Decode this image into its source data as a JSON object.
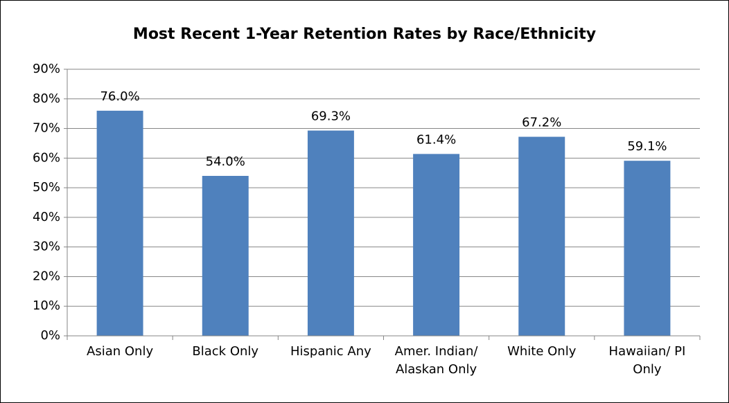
{
  "chart_data": {
    "type": "bar",
    "title": "Most Recent 1-Year Retention Rates by Race/Ethnicity",
    "categories": [
      "Asian Only",
      "Black Only",
      "Hispanic Any",
      "Amer. Indian/ Alaskan Only",
      "White Only",
      "Hawaiian/ PI Only"
    ],
    "values": [
      76.0,
      54.0,
      69.3,
      61.4,
      67.2,
      59.1
    ],
    "value_labels": [
      "76.0%",
      "54.0%",
      "69.3%",
      "61.4%",
      "67.2%",
      "59.1%"
    ],
    "color": "#4f81bd",
    "ylim": [
      0,
      90
    ],
    "yticks": [
      {
        "value": 0,
        "label": "0%"
      },
      {
        "value": 10,
        "label": "10%"
      },
      {
        "value": 20,
        "label": "20%"
      },
      {
        "value": 30,
        "label": "30%"
      },
      {
        "value": 40,
        "label": "40%"
      },
      {
        "value": 50,
        "label": "50%"
      },
      {
        "value": 60,
        "label": "60%"
      },
      {
        "value": 70,
        "label": "70%"
      },
      {
        "value": 80,
        "label": "80%"
      },
      {
        "value": 90,
        "label": "90%"
      }
    ],
    "grid": true
  }
}
